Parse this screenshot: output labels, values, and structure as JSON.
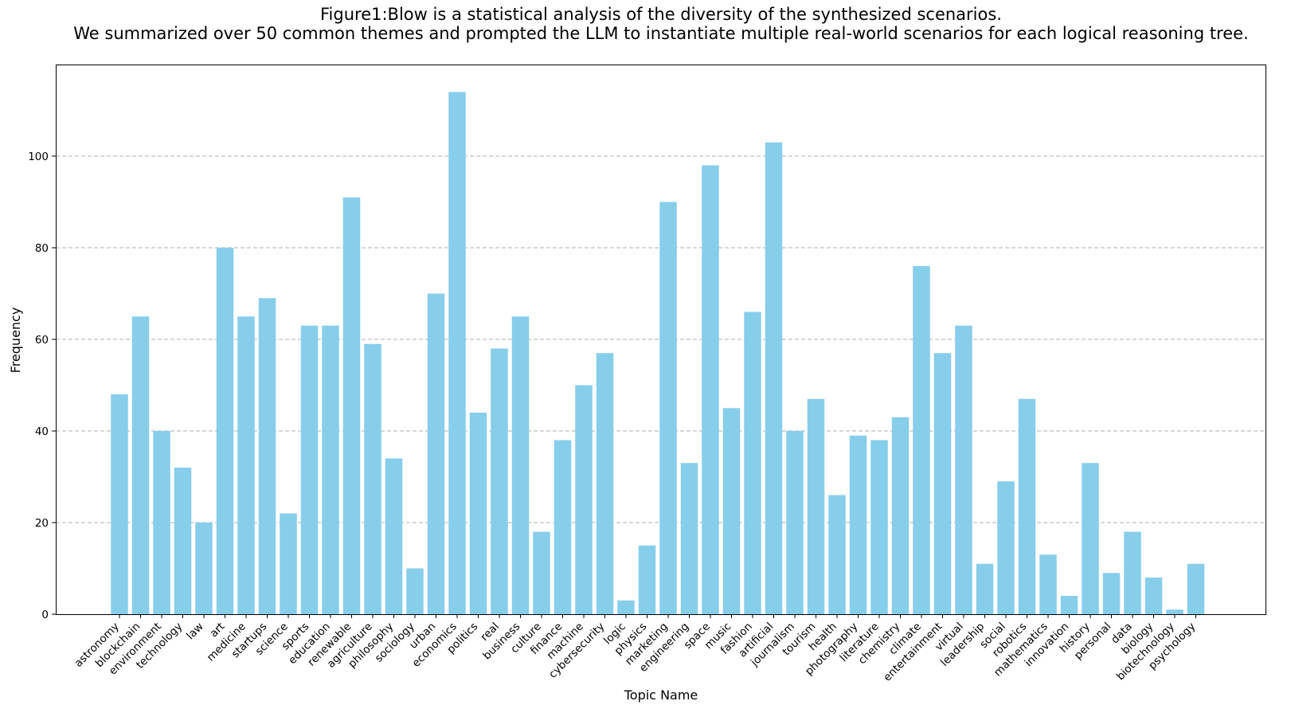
{
  "chart_data": {
    "type": "bar",
    "title_lines": [
      "Figure1:Blow is a statistical analysis of the diversity of the synthesized scenarios.",
      "We summarized over 50 common themes and prompted the LLM to instantiate multiple real-world scenarios for each logical reasoning tree."
    ],
    "xlabel": "Topic Name",
    "ylabel": "Frequency",
    "ylim": [
      0,
      120
    ],
    "yticks": [
      0,
      20,
      40,
      60,
      80,
      100
    ],
    "grid": "y-dashed",
    "bar_color": "#87CEEB",
    "categories": [
      "astronomy",
      "blockchain",
      "environment",
      "technology",
      "law",
      "art",
      "medicine",
      "startups",
      "science",
      "sports",
      "education",
      "renewable",
      "agriculture",
      "philosophy",
      "sociology",
      "urban",
      "economics",
      "politics",
      "real",
      "business",
      "culture",
      "finance",
      "machine",
      "cybersecurity",
      "logic",
      "physics",
      "marketing",
      "engineering",
      "space",
      "music",
      "fashion",
      "artificial",
      "journalism",
      "tourism",
      "health",
      "photography",
      "literature",
      "chemistry",
      "climate",
      "entertainment",
      "virtual",
      "leadership",
      "social",
      "robotics",
      "mathematics",
      "innovation",
      "history",
      "personal",
      "data",
      "biology",
      "biotechnology",
      "psychology"
    ],
    "values": [
      48,
      65,
      40,
      32,
      20,
      80,
      65,
      69,
      22,
      63,
      63,
      91,
      59,
      34,
      10,
      70,
      114,
      44,
      58,
      65,
      18,
      38,
      50,
      57,
      3,
      15,
      90,
      33,
      98,
      45,
      66,
      103,
      40,
      47,
      26,
      39,
      38,
      43,
      76,
      57,
      63,
      11,
      29,
      47,
      13,
      4,
      33,
      9,
      18,
      8,
      1,
      11
    ]
  }
}
